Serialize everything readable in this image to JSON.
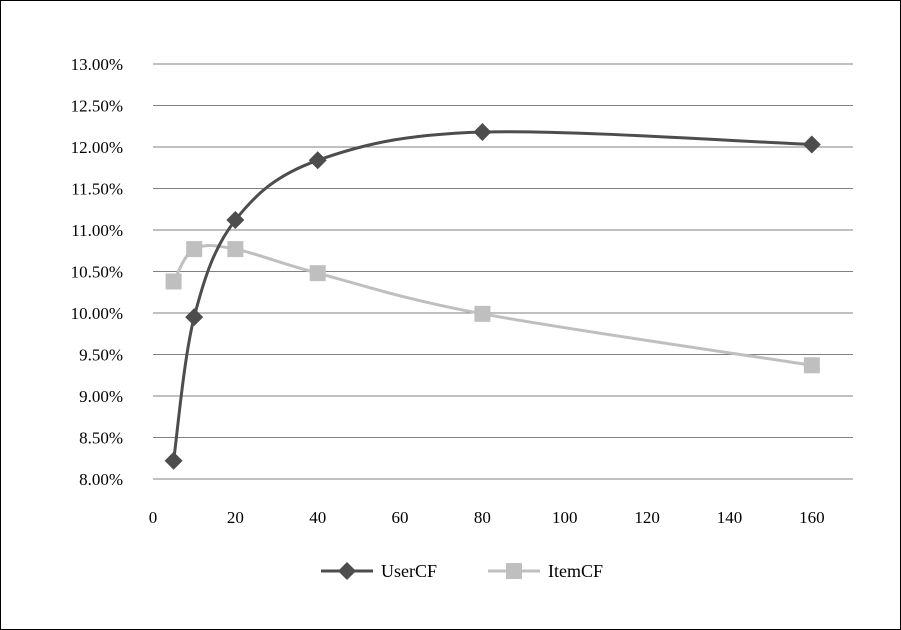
{
  "chart_data": {
    "type": "line",
    "x_ticks": [
      0,
      20,
      40,
      60,
      80,
      100,
      120,
      140,
      160
    ],
    "y_ticks": [
      "8.00%",
      "8.50%",
      "9.00%",
      "9.50%",
      "10.00%",
      "10.50%",
      "11.00%",
      "11.50%",
      "12.00%",
      "12.50%",
      "13.00%"
    ],
    "xlim": [
      0,
      170
    ],
    "ylim": [
      8.0,
      13.0
    ],
    "grid": "horizontal",
    "legend_position": "bottom",
    "series": [
      {
        "name": "UserCF",
        "color": "#4d4d4d",
        "marker": "diamond",
        "x": [
          5,
          10,
          20,
          40,
          80,
          160
        ],
        "y": [
          8.22,
          9.95,
          11.12,
          11.84,
          12.18,
          12.03
        ]
      },
      {
        "name": "ItemCF",
        "color": "#bfbfbf",
        "marker": "square",
        "x": [
          5,
          10,
          20,
          40,
          80,
          160
        ],
        "y": [
          10.38,
          10.77,
          10.77,
          10.48,
          9.99,
          9.37
        ]
      }
    ]
  }
}
